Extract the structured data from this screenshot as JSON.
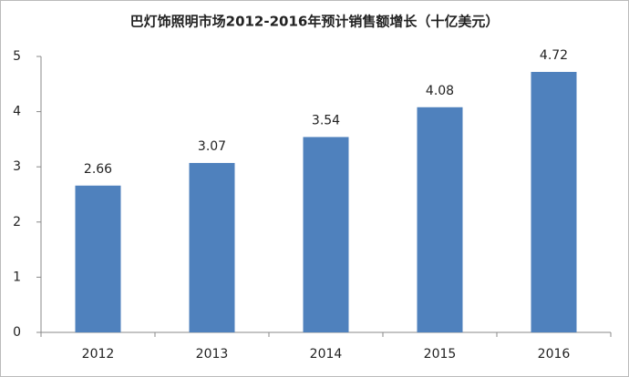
{
  "chart_data": {
    "type": "bar",
    "title": "巴灯饰照明市场2012-2016年预计销售额增长（十亿美元）",
    "categories": [
      "2012",
      "2013",
      "2014",
      "2015",
      "2016"
    ],
    "values": [
      2.66,
      3.07,
      3.54,
      4.08,
      4.72
    ],
    "color": "#4f81bd",
    "ylim": [
      0,
      5
    ],
    "yticks": [
      0,
      1,
      2,
      3,
      4,
      5
    ],
    "grid": false
  }
}
